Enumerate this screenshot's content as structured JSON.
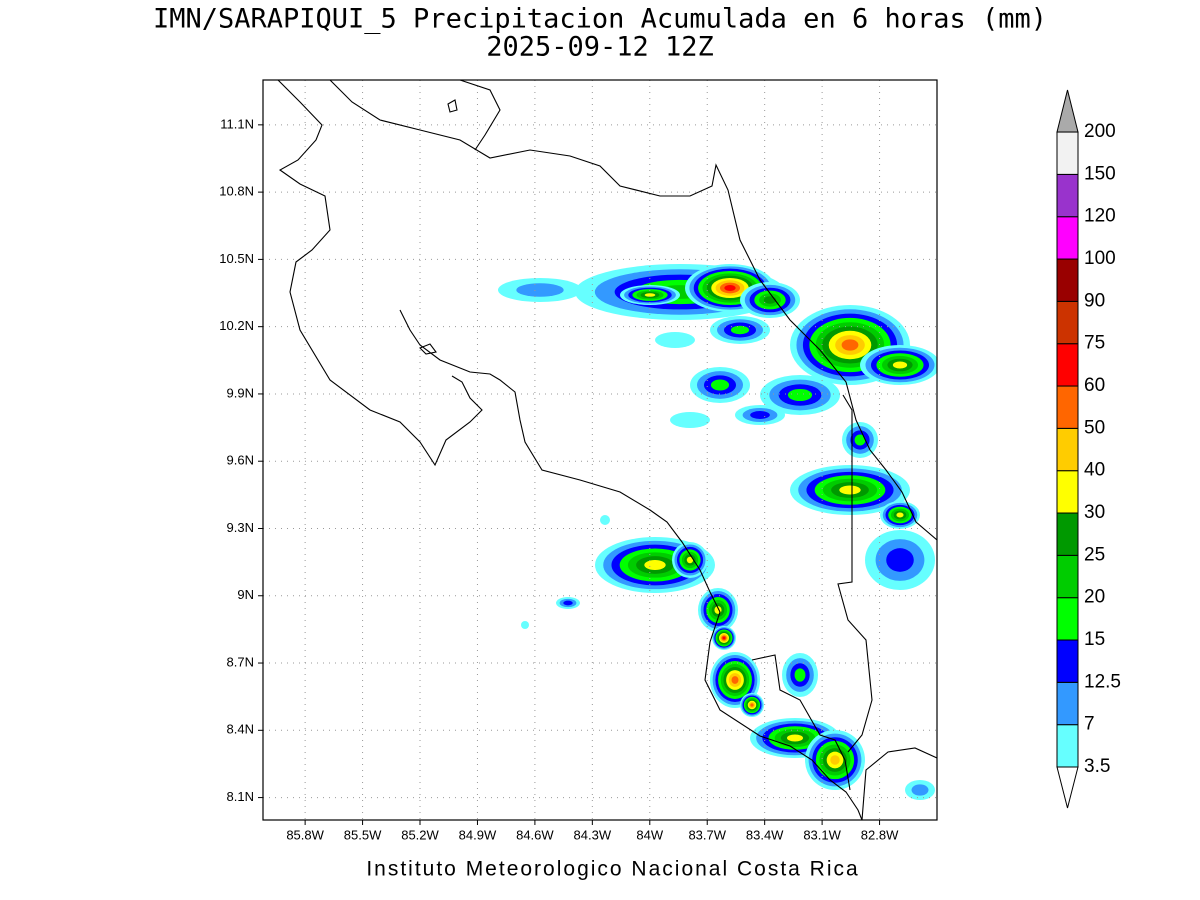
{
  "chart_data": {
    "type": "contour-map",
    "title": "IMN/SARAPIQUI_5 Precipitacion Acumulada en 6 horas (mm)",
    "subtitle": "2025-09-12 12Z",
    "footer": "Instituto Meteorologico Nacional Costa Rica",
    "xlim": [
      -86.02,
      -82.5
    ],
    "ylim": [
      8.0,
      11.3
    ],
    "xticks": [
      {
        "value": -85.8,
        "label": "85.8W"
      },
      {
        "value": -85.5,
        "label": "85.5W"
      },
      {
        "value": -85.2,
        "label": "85.2W"
      },
      {
        "value": -84.9,
        "label": "84.9W"
      },
      {
        "value": -84.6,
        "label": "84.6W"
      },
      {
        "value": -84.3,
        "label": "84.3W"
      },
      {
        "value": -84.0,
        "label": "84W"
      },
      {
        "value": -83.7,
        "label": "83.7W"
      },
      {
        "value": -83.4,
        "label": "83.4W"
      },
      {
        "value": -83.1,
        "label": "83.1W"
      },
      {
        "value": -82.8,
        "label": "82.8W"
      }
    ],
    "yticks": [
      {
        "value": 8.1,
        "label": "8.1N"
      },
      {
        "value": 8.4,
        "label": "8.4N"
      },
      {
        "value": 8.7,
        "label": "8.7N"
      },
      {
        "value": 9.0,
        "label": "9N"
      },
      {
        "value": 9.3,
        "label": "9.3N"
      },
      {
        "value": 9.6,
        "label": "9.6N"
      },
      {
        "value": 9.9,
        "label": "9.9N"
      },
      {
        "value": 10.2,
        "label": "10.2N"
      },
      {
        "value": 10.5,
        "label": "10.5N"
      },
      {
        "value": 10.8,
        "label": "10.8N"
      },
      {
        "value": 11.1,
        "label": "11.1N"
      }
    ],
    "grid": true,
    "colorbar": {
      "levels": [
        3.5,
        7,
        12.5,
        15,
        20,
        25,
        30,
        40,
        50,
        60,
        75,
        90,
        100,
        120,
        150,
        200
      ],
      "colors": [
        "#66ffff",
        "#3399ff",
        "#0000ff",
        "#00ff00",
        "#00cc00",
        "#009900",
        "#ffff00",
        "#ffcc00",
        "#ff6600",
        "#ff0000",
        "#cc3300",
        "#990000",
        "#ff00ff",
        "#9933cc",
        "#f2f2f2"
      ],
      "under_color": "#ffffff",
      "over_color": "#aaaaaa"
    }
  }
}
